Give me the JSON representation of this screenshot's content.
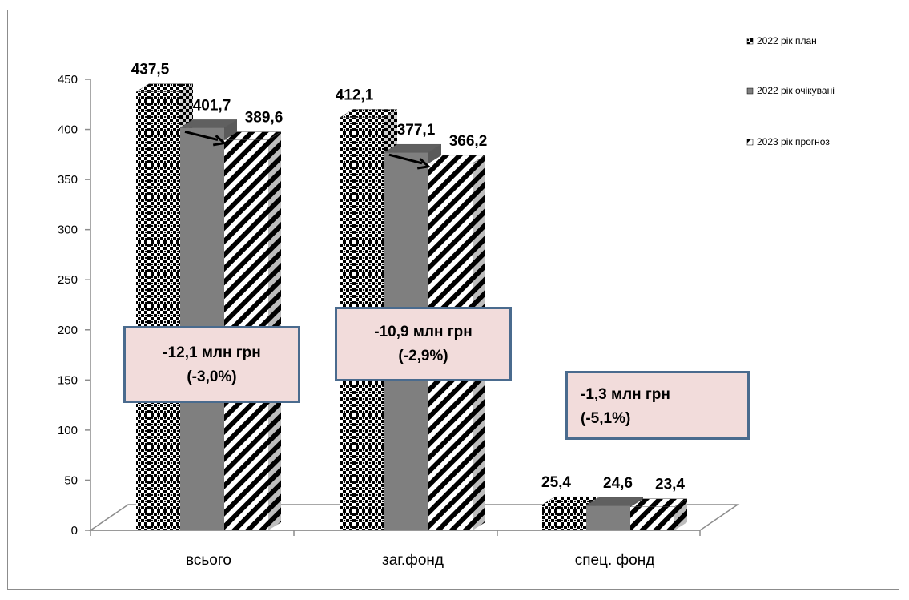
{
  "chart_data": {
    "type": "bar",
    "categories": [
      "всього",
      "заг.фонд",
      "спец. фонд"
    ],
    "series": [
      {
        "name": "2022 рік план",
        "values": [
          437.5,
          412.1,
          25.4
        ],
        "labels": [
          "437,5",
          "412,1",
          "25,4"
        ],
        "pattern": "checker"
      },
      {
        "name": "2022 рік очікувані",
        "values": [
          401.7,
          377.1,
          24.6
        ],
        "labels": [
          "401,7",
          "377,1",
          "24,6"
        ],
        "pattern": "solid"
      },
      {
        "name": "2023 рік прогноз",
        "values": [
          389.6,
          366.2,
          23.4
        ],
        "labels": [
          "389,6",
          "366,2",
          "23,4"
        ],
        "pattern": "stripe"
      }
    ],
    "ylim": [
      0,
      450
    ],
    "yticks": [
      "0",
      "50",
      "100",
      "150",
      "200",
      "250",
      "300",
      "350",
      "400",
      "450"
    ],
    "legend_position": "top-right",
    "annotations": [
      {
        "line1": "-12,1 млн грн",
        "line2": "(-3,0%)"
      },
      {
        "line1": "-10,9 млн грн",
        "line2": "(-2,9%)"
      },
      {
        "line1": "-1,3 млн грн",
        "line2": "(-5,1%)"
      }
    ],
    "colors": {
      "solid_front": "#7f7f7f",
      "solid_top": "#606060",
      "solid_side": "#5a5a5a",
      "callout_fill": "#f2dcdb",
      "callout_border": "#4a6b8e",
      "axis": "#888888"
    }
  }
}
